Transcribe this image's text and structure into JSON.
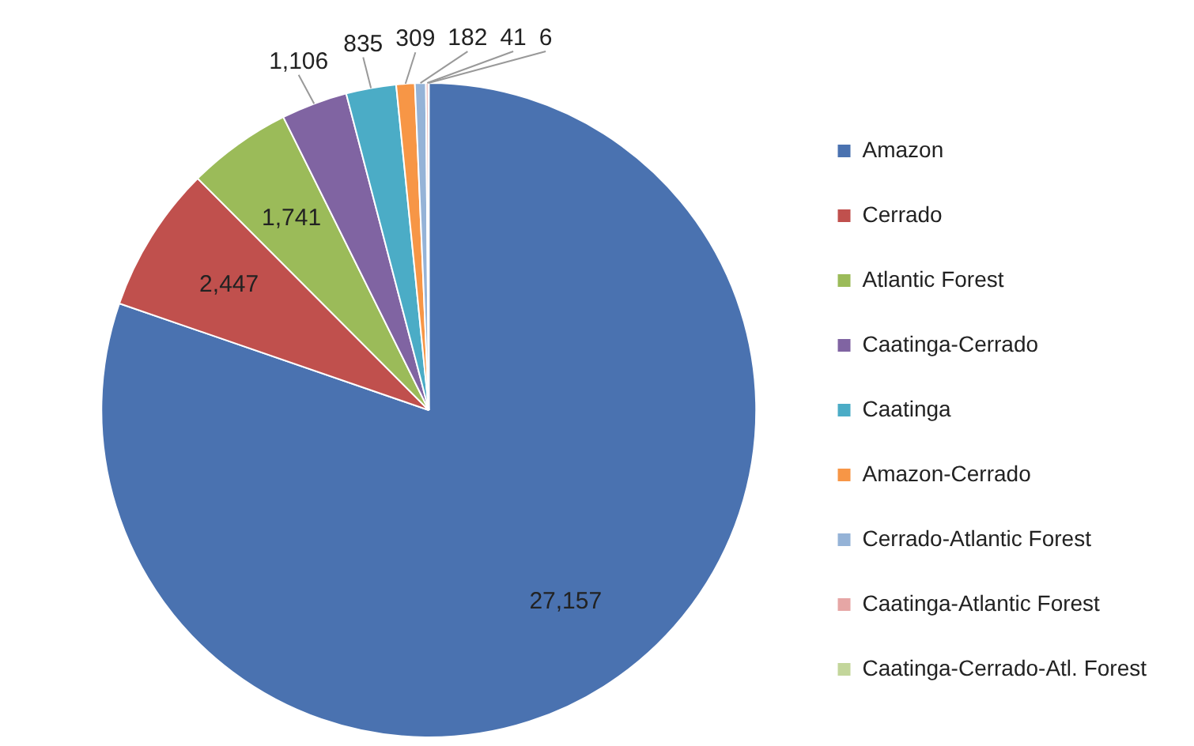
{
  "chart_data": {
    "type": "pie",
    "categories": [
      "Amazon",
      "Cerrado",
      "Atlantic Forest",
      "Caatinga-Cerrado",
      "Caatinga",
      "Amazon-Cerrado",
      "Cerrado-Atlantic Forest",
      "Caatinga-Atlantic Forest",
      "Caatinga-Cerrado-Atl. Forest"
    ],
    "values": [
      27157,
      2447,
      1741,
      1106,
      835,
      309,
      182,
      41,
      6
    ],
    "value_labels": [
      "27,157",
      "2,447",
      "1,741",
      "1,106",
      "835",
      "309",
      "182",
      "41",
      "6"
    ],
    "colors": [
      "#4a72b0",
      "#c0504d",
      "#9bbb59",
      "#8064a2",
      "#4bacc6",
      "#f79646",
      "#95b3d7",
      "#e6a6a5",
      "#c3d69b"
    ],
    "legend": "right"
  }
}
